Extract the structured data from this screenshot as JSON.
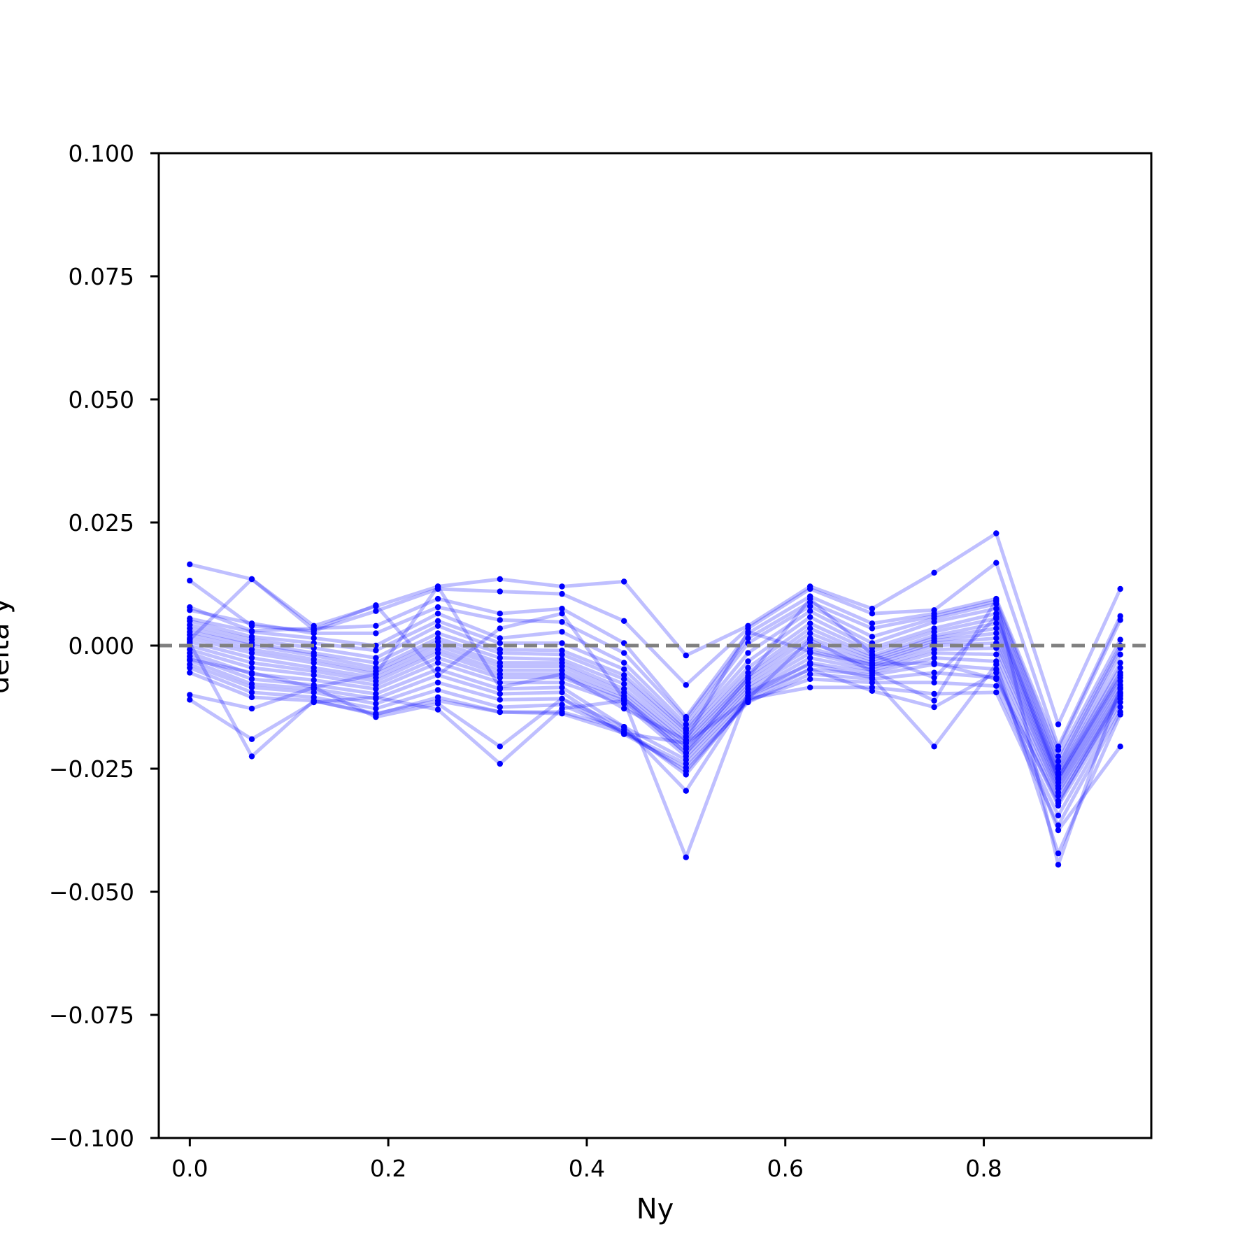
{
  "chart_data": {
    "type": "line",
    "title": "",
    "xlabel": "Ny",
    "ylabel": "delta y",
    "xlim": [
      -0.03125,
      0.96875
    ],
    "ylim": [
      -0.1,
      0.1
    ],
    "xticks": [
      0.0,
      0.2,
      0.4,
      0.6,
      0.8
    ],
    "xtick_labels": [
      "0.0",
      "0.2",
      "0.4",
      "0.6",
      "0.8"
    ],
    "yticks": [
      -0.1,
      -0.075,
      -0.05,
      -0.025,
      0.0,
      0.025,
      0.05,
      0.075,
      0.1
    ],
    "ytick_labels": [
      "−0.100",
      "−0.075",
      "−0.050",
      "−0.025",
      "0.000",
      "0.025",
      "0.050",
      "0.075",
      "0.100"
    ],
    "grid": false,
    "legend": "none",
    "series_color": "#0000ff",
    "series_alpha": 0.25,
    "reference_line": {
      "y": 0.0,
      "style": "dashed",
      "color": "#808080"
    },
    "x": [
      0.0,
      0.0625,
      0.125,
      0.1875,
      0.25,
      0.3125,
      0.375,
      0.4375,
      0.5,
      0.5625,
      0.625,
      0.6875,
      0.75,
      0.8125,
      0.875,
      0.9375
    ],
    "series": [
      {
        "values": [
          0.0165,
          0.0135,
          0.004,
          0.008,
          0.012,
          0.0135,
          0.012,
          0.013,
          -0.002,
          0.004,
          0.012,
          0.0075,
          0.0148,
          0.0228,
          -0.016,
          0.0115
        ]
      },
      {
        "values": [
          0.0132,
          0.004,
          0.003,
          0.007,
          0.0115,
          0.011,
          0.0105,
          0.005,
          -0.008,
          0.0035,
          0.0115,
          0.0065,
          0.0072,
          0.0168,
          -0.0205,
          0.006
        ]
      },
      {
        "values": [
          0.0078,
          0.003,
          0.0035,
          0.004,
          0.0095,
          0.0065,
          0.0075,
          0.0005,
          -0.0145,
          0.0025,
          0.01,
          0.0045,
          0.0065,
          0.0095,
          -0.0212,
          0.0052
        ]
      },
      {
        "values": [
          0.0072,
          0.0045,
          0.0025,
          0.0025,
          0.0078,
          0.0052,
          0.0048,
          -0.0015,
          -0.015,
          0.0015,
          0.0088,
          0.0035,
          0.006,
          0.009,
          -0.0225,
          0.0012
        ]
      },
      {
        "values": [
          0.0055,
          0.0028,
          0.0015,
          0.0,
          0.0065,
          0.0015,
          0.0028,
          -0.0035,
          -0.016,
          0.0005,
          0.008,
          0.0018,
          0.0055,
          0.0085,
          -0.0235,
          0.0
        ]
      },
      {
        "values": [
          0.005,
          0.0018,
          0.0005,
          -0.001,
          0.005,
          0.0005,
          0.0005,
          -0.0048,
          -0.0168,
          -0.0015,
          0.007,
          0.0005,
          0.0048,
          0.0075,
          -0.0245,
          -0.0005
        ]
      },
      {
        "values": [
          0.0042,
          0.0012,
          -0.0005,
          -0.0025,
          0.004,
          -0.0008,
          -0.001,
          -0.006,
          -0.0172,
          -0.0032,
          0.0058,
          -0.0005,
          0.0035,
          0.0065,
          -0.025,
          -0.0018
        ]
      },
      {
        "values": [
          0.0035,
          0.0005,
          -0.0015,
          -0.0035,
          0.0025,
          -0.0015,
          -0.0018,
          -0.0068,
          -0.0178,
          -0.0045,
          0.0045,
          -0.0012,
          0.0028,
          0.0055,
          -0.0258,
          -0.0035
        ]
      },
      {
        "values": [
          0.0028,
          0.0,
          -0.002,
          -0.0045,
          0.0015,
          -0.0025,
          -0.0028,
          -0.0078,
          -0.0185,
          -0.0055,
          0.0035,
          -0.002,
          0.002,
          0.0045,
          -0.0262,
          -0.0045
        ]
      },
      {
        "values": [
          0.0022,
          -0.0008,
          -0.0028,
          -0.0052,
          0.0008,
          -0.0035,
          -0.0035,
          -0.0088,
          -0.0192,
          -0.0062,
          0.0025,
          -0.0025,
          0.0015,
          0.0035,
          -0.0268,
          -0.0055
        ]
      },
      {
        "values": [
          0.0015,
          -0.0015,
          -0.0035,
          -0.0058,
          0.0,
          -0.0042,
          -0.0042,
          -0.0095,
          -0.0198,
          -0.0068,
          0.0015,
          -0.003,
          0.001,
          0.0025,
          -0.0272,
          -0.0065
        ]
      },
      {
        "values": [
          0.0008,
          -0.0025,
          -0.0045,
          -0.0065,
          -0.0008,
          -0.005,
          -0.005,
          -0.0102,
          -0.0205,
          -0.0075,
          0.0005,
          -0.0035,
          0.0005,
          0.0015,
          -0.0278,
          -0.0072
        ]
      },
      {
        "values": [
          0.0,
          -0.0035,
          -0.0052,
          -0.0072,
          -0.0015,
          -0.0058,
          -0.0058,
          -0.0108,
          -0.021,
          -0.0082,
          -0.0005,
          -0.004,
          0.0,
          0.0005,
          -0.0285,
          -0.008
        ]
      },
      {
        "values": [
          -0.0008,
          -0.0045,
          -0.006,
          -0.008,
          -0.0025,
          -0.0065,
          -0.0065,
          -0.0112,
          -0.0218,
          -0.0088,
          -0.0015,
          -0.0045,
          -0.0008,
          -0.0005,
          -0.029,
          -0.0088
        ]
      },
      {
        "values": [
          -0.0015,
          -0.0058,
          -0.007,
          -0.0088,
          -0.0035,
          -0.0075,
          -0.0075,
          -0.0118,
          -0.0225,
          -0.0095,
          -0.0025,
          -0.005,
          -0.0015,
          -0.0018,
          -0.0298,
          -0.0095
        ]
      },
      {
        "values": [
          -0.0022,
          -0.0068,
          -0.008,
          -0.0098,
          -0.0048,
          -0.0088,
          -0.0085,
          -0.0165,
          -0.0232,
          -0.0102,
          -0.0035,
          -0.0055,
          -0.0025,
          -0.0032,
          -0.0305,
          -0.0102
        ]
      },
      {
        "values": [
          -0.003,
          -0.0078,
          -0.0088,
          -0.0108,
          -0.006,
          -0.0098,
          -0.0095,
          -0.0178,
          -0.024,
          -0.011,
          -0.0048,
          -0.006,
          -0.0038,
          -0.0048,
          -0.0315,
          -0.0108
        ]
      },
      {
        "values": [
          -0.0038,
          -0.0085,
          -0.0095,
          -0.0118,
          -0.0075,
          -0.011,
          -0.0108,
          -0.018,
          -0.0248,
          -0.0115,
          -0.0058,
          -0.0068,
          -0.0055,
          -0.0065,
          -0.0325,
          -0.0115
        ]
      },
      {
        "values": [
          -0.0045,
          -0.0095,
          -0.0105,
          -0.0128,
          -0.009,
          -0.0125,
          -0.012,
          -0.0175,
          -0.0255,
          -0.0112,
          -0.0068,
          -0.0075,
          -0.0075,
          -0.0082,
          -0.0345,
          -0.0125
        ]
      },
      {
        "values": [
          -0.0055,
          -0.0105,
          -0.0112,
          -0.014,
          -0.0105,
          -0.0135,
          -0.0135,
          -0.017,
          -0.0262,
          -0.0108,
          -0.0085,
          -0.0085,
          -0.0098,
          -0.0095,
          -0.0365,
          -0.0135
        ]
      },
      {
        "values": [
          -0.01,
          -0.0128,
          -0.0085,
          -0.0145,
          -0.0118,
          -0.0205,
          -0.0108,
          -0.0165,
          -0.0295,
          -0.0102,
          -0.0048,
          -0.0092,
          -0.0125,
          -0.0055,
          -0.0375,
          -0.0205
        ]
      },
      {
        "values": [
          -0.011,
          -0.019,
          -0.0115,
          -0.0105,
          -0.013,
          -0.024,
          -0.0128,
          -0.0112,
          -0.043,
          -0.0095,
          -0.0038,
          -0.0065,
          -0.0205,
          -0.0038,
          -0.0422,
          -0.014
        ]
      },
      {
        "values": [
          0.0005,
          -0.0225,
          -0.0112,
          -0.0138,
          -0.0112,
          -0.0135,
          -0.0138,
          -0.0178,
          -0.0198,
          -0.0108,
          0.0012,
          -0.0052,
          -0.0112,
          0.0092,
          -0.0445,
          -0.0085
        ]
      },
      {
        "values": [
          0.0012,
          0.0135,
          0.0032,
          0.0082,
          -0.006,
          0.0035,
          0.0065,
          -0.0108,
          -0.0218,
          -0.0065,
          0.0095,
          -0.0018,
          -0.0065,
          0.0058,
          -0.027,
          -0.006
        ]
      },
      {
        "values": [
          -0.0028,
          -0.0055,
          -0.0085,
          -0.0058,
          0.012,
          -0.0085,
          -0.0058,
          -0.0128,
          -0.0192,
          0.0028,
          -0.0012,
          -0.0038,
          -0.0035,
          -0.0068,
          -0.032,
          -0.0098
        ]
      }
    ]
  }
}
